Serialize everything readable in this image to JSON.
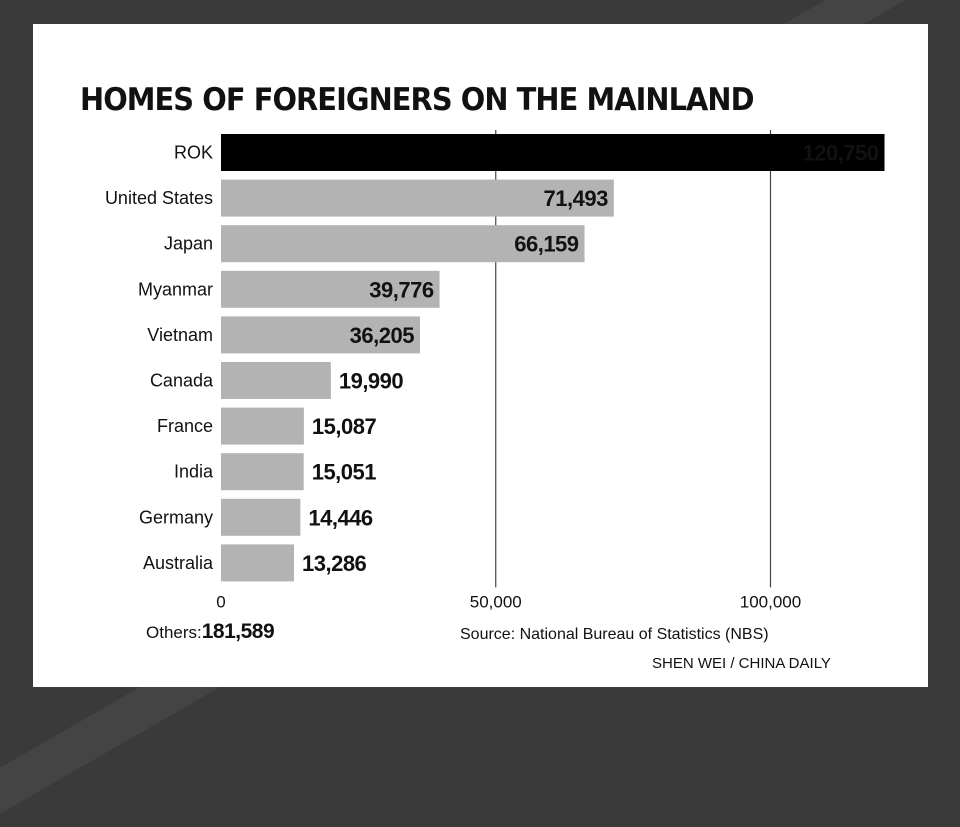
{
  "chart_data": {
    "type": "bar",
    "orientation": "horizontal",
    "title": "HOMES OF FOREIGNERS ON THE MAINLAND",
    "categories": [
      "ROK",
      "United States",
      "Japan",
      "Myanmar",
      "Vietnam",
      "Canada",
      "France",
      "India",
      "Germany",
      "Australia"
    ],
    "values": [
      120750,
      71493,
      66159,
      39776,
      36205,
      19990,
      15087,
      15051,
      14446,
      13286
    ],
    "value_labels": [
      "120,750",
      "71,493",
      "66,159",
      "39,776",
      "36,205",
      "19,990",
      "15,087",
      "15,051",
      "14,446",
      "13,286"
    ],
    "highlight_index": 0,
    "xlim": [
      0,
      120750
    ],
    "xticks": [
      0,
      50000,
      100000
    ],
    "xtick_labels": [
      "0",
      "50,000",
      "100,000"
    ],
    "gridlines": "vertical at ticks",
    "colors": {
      "highlight": "#000000",
      "bar": "#b3b3b3",
      "grid": "#444444"
    }
  },
  "others": {
    "label": "Others:",
    "value": "181,589"
  },
  "source": "Source: National Bureau of Statistics (NBS)",
  "credit": "SHEN WEI / CHINA DAILY"
}
